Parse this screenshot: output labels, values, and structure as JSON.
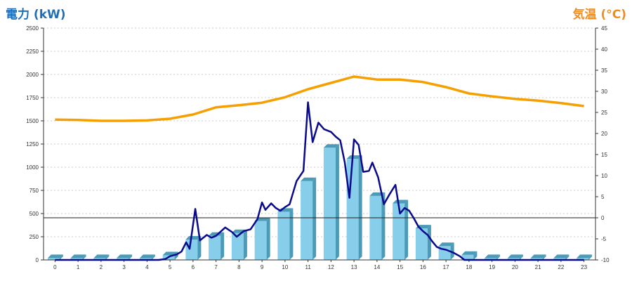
{
  "chart_data": {
    "type": "bar+line",
    "left_axis_title": "電力 (kW)",
    "right_axis_title": "気温 (°C)",
    "categories": [
      "0",
      "1",
      "2",
      "3",
      "4",
      "5",
      "6",
      "7",
      "8",
      "9",
      "10",
      "11",
      "12",
      "13",
      "14",
      "15",
      "16",
      "17",
      "18",
      "19",
      "20",
      "21",
      "22",
      "23"
    ],
    "y_left": {
      "min": 0,
      "max": 2500,
      "step": 250
    },
    "y_right": {
      "min": -10,
      "max": 45,
      "step": 5
    },
    "gridlines": true,
    "bars": {
      "values": [
        20,
        20,
        20,
        20,
        20,
        50,
        220,
        260,
        290,
        420,
        520,
        850,
        1210,
        1090,
        690,
        610,
        340,
        150,
        55,
        20,
        20,
        20,
        20,
        20
      ],
      "color": "#87ceeb",
      "color_side": "#4a9ab8"
    },
    "power_line": {
      "color": "#0a0a8c",
      "points": [
        [
          0,
          0
        ],
        [
          1,
          0
        ],
        [
          2,
          0
        ],
        [
          3,
          0
        ],
        [
          4,
          0
        ],
        [
          4.5,
          0
        ],
        [
          4.8,
          10
        ],
        [
          5.0,
          40
        ],
        [
          5.3,
          60
        ],
        [
          5.5,
          90
        ],
        [
          5.7,
          190
        ],
        [
          5.85,
          120
        ],
        [
          6.1,
          550
        ],
        [
          6.3,
          210
        ],
        [
          6.6,
          270
        ],
        [
          6.8,
          240
        ],
        [
          7.0,
          260
        ],
        [
          7.4,
          350
        ],
        [
          7.7,
          300
        ],
        [
          7.9,
          250
        ],
        [
          8.2,
          310
        ],
        [
          8.5,
          330
        ],
        [
          8.8,
          440
        ],
        [
          9.0,
          620
        ],
        [
          9.15,
          540
        ],
        [
          9.4,
          610
        ],
        [
          9.6,
          560
        ],
        [
          9.8,
          530
        ],
        [
          10.0,
          570
        ],
        [
          10.2,
          600
        ],
        [
          10.5,
          850
        ],
        [
          10.8,
          960
        ],
        [
          11.0,
          1700
        ],
        [
          11.2,
          1270
        ],
        [
          11.45,
          1480
        ],
        [
          11.7,
          1410
        ],
        [
          12.0,
          1380
        ],
        [
          12.2,
          1330
        ],
        [
          12.4,
          1290
        ],
        [
          12.6,
          1050
        ],
        [
          12.8,
          670
        ],
        [
          13.0,
          1300
        ],
        [
          13.2,
          1240
        ],
        [
          13.4,
          950
        ],
        [
          13.65,
          960
        ],
        [
          13.8,
          1050
        ],
        [
          14.05,
          890
        ],
        [
          14.3,
          600
        ],
        [
          14.55,
          710
        ],
        [
          14.8,
          810
        ],
        [
          15.0,
          500
        ],
        [
          15.2,
          560
        ],
        [
          15.4,
          530
        ],
        [
          15.6,
          450
        ],
        [
          15.8,
          360
        ],
        [
          16.0,
          310
        ],
        [
          16.2,
          270
        ],
        [
          16.4,
          200
        ],
        [
          16.6,
          140
        ],
        [
          16.8,
          120
        ],
        [
          17.0,
          110
        ],
        [
          17.3,
          80
        ],
        [
          17.6,
          40
        ],
        [
          17.8,
          0
        ],
        [
          18.0,
          0
        ],
        [
          19,
          0
        ],
        [
          20,
          0
        ],
        [
          21,
          0
        ],
        [
          22,
          0
        ],
        [
          23,
          0
        ]
      ]
    },
    "temperature_line": {
      "color": "#f5a000",
      "x": [
        0,
        1,
        2,
        3,
        4,
        5,
        6,
        7,
        8,
        9,
        10,
        11,
        12,
        13,
        14,
        15,
        16,
        17,
        18,
        19,
        20,
        21,
        22,
        23
      ],
      "values": [
        23.3,
        23.2,
        23.0,
        23.0,
        23.1,
        23.5,
        24.5,
        26.2,
        26.7,
        27.3,
        28.6,
        30.5,
        32.0,
        33.5,
        32.8,
        32.8,
        32.2,
        31.0,
        29.5,
        28.8,
        28.2,
        27.8,
        27.2,
        26.5
      ]
    },
    "zero_reference_line": 0
  }
}
